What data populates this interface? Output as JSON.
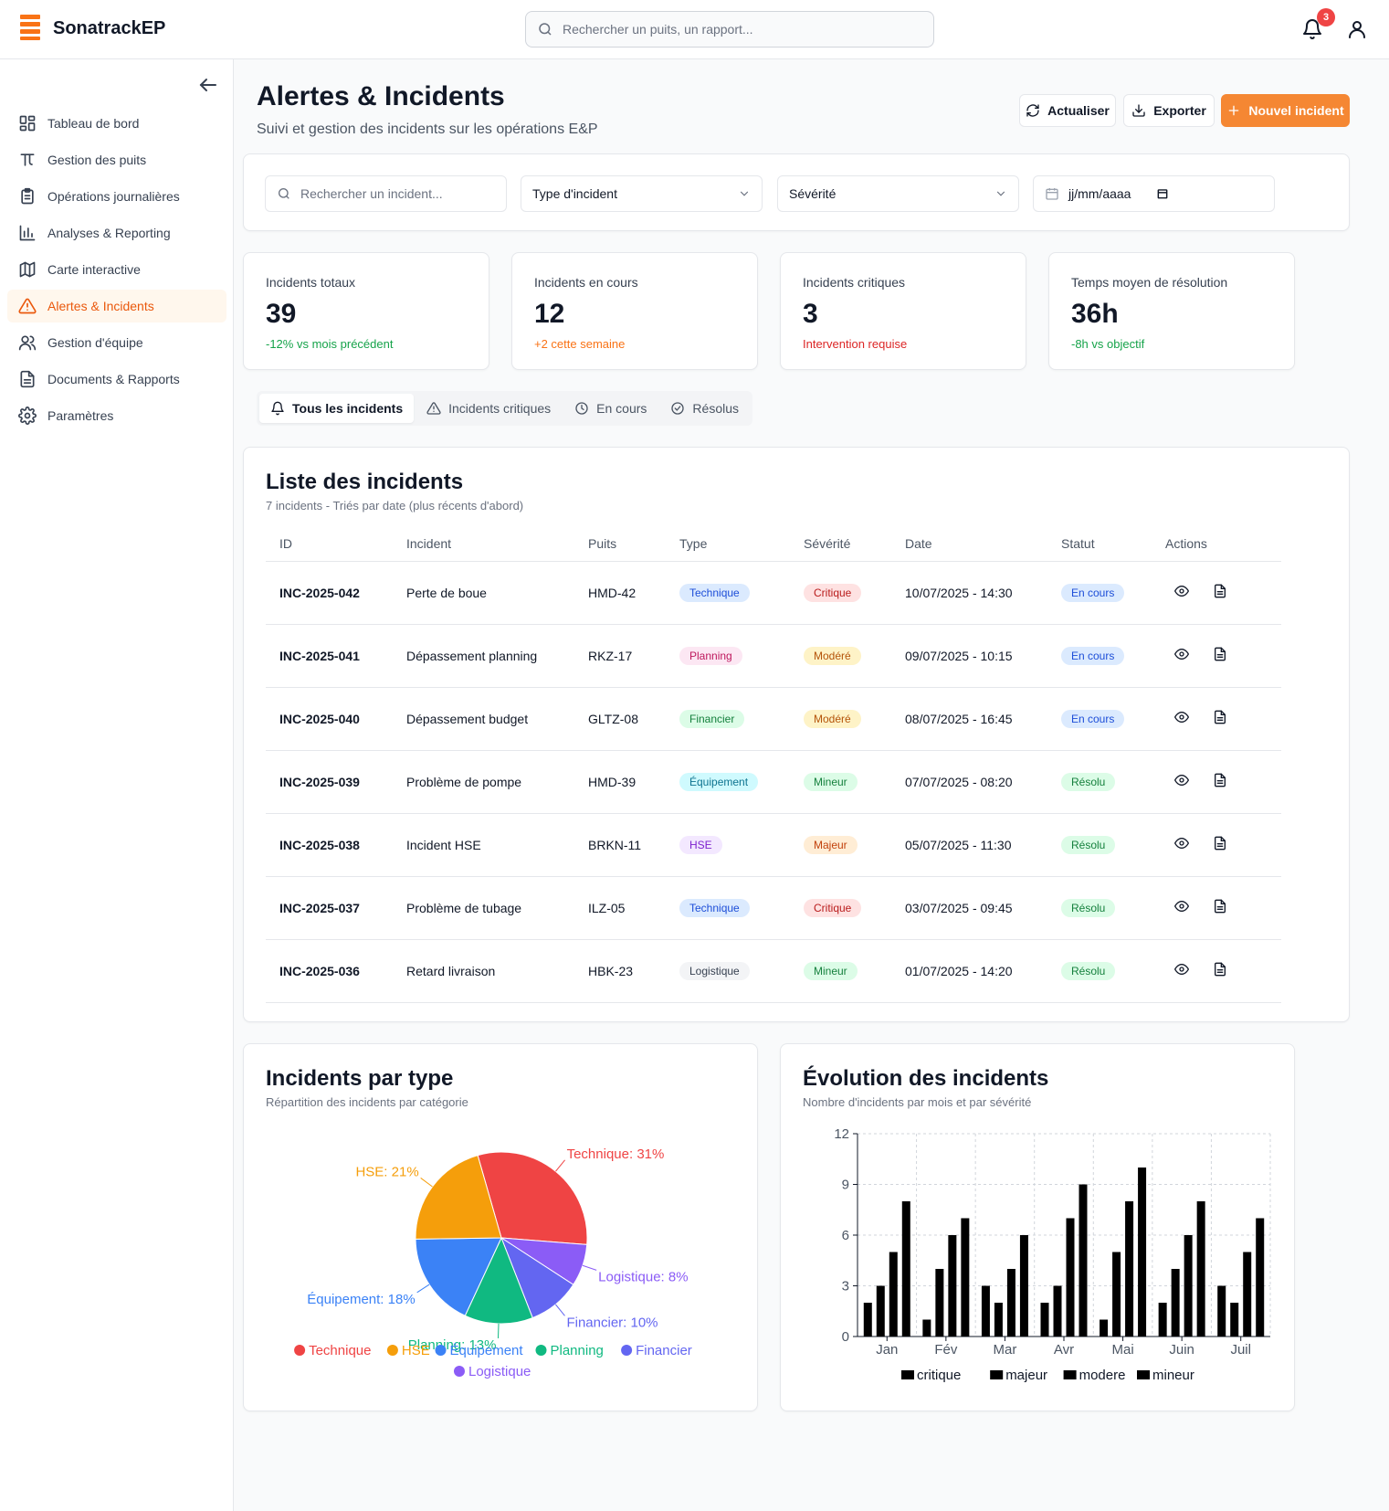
{
  "app": {
    "name": "SonatrackEP"
  },
  "header": {
    "search_placeholder": "Rechercher un puits, un rapport...",
    "notification_count": "3"
  },
  "sidebar": {
    "items": [
      {
        "label": "Tableau de bord",
        "icon": "dashboard-icon",
        "active": false
      },
      {
        "label": "Gestion des puits",
        "icon": "well-icon",
        "active": false
      },
      {
        "label": "Opérations journalières",
        "icon": "clipboard-icon",
        "active": false
      },
      {
        "label": "Analyses & Reporting",
        "icon": "bar-chart-icon",
        "active": false
      },
      {
        "label": "Carte interactive",
        "icon": "map-icon",
        "active": false
      },
      {
        "label": "Alertes & Incidents",
        "icon": "warning-icon",
        "active": true
      },
      {
        "label": "Gestion d'équipe",
        "icon": "users-icon",
        "active": false
      },
      {
        "label": "Documents & Rapports",
        "icon": "document-icon",
        "active": false
      },
      {
        "label": "Paramètres",
        "icon": "gear-icon",
        "active": false
      }
    ]
  },
  "page": {
    "title": "Alertes & Incidents",
    "subtitle": "Suivi et gestion des incidents sur les opérations E&P",
    "actions": {
      "refresh": "Actualiser",
      "export": "Exporter",
      "new": "Nouvel incident"
    }
  },
  "filters": {
    "search_placeholder": "Rechercher un incident...",
    "type": "Type d'incident",
    "severity": "Sévérité",
    "date_placeholder": "jj/mm/aaaa"
  },
  "kpis": [
    {
      "label": "Incidents totaux",
      "value": "39",
      "note": "-12% vs mois précédent",
      "color": "#16a34a"
    },
    {
      "label": "Incidents en cours",
      "value": "12",
      "note": "+2 cette semaine",
      "color": "#f97316"
    },
    {
      "label": "Incidents critiques",
      "value": "3",
      "note": "Intervention requise",
      "color": "#dc2626"
    },
    {
      "label": "Temps moyen de résolution",
      "value": "36h",
      "note": "-8h vs objectif",
      "color": "#16a34a"
    }
  ],
  "tabs": [
    {
      "label": "Tous les incidents",
      "icon": "bell-icon",
      "active": true
    },
    {
      "label": "Incidents critiques",
      "icon": "warning-icon",
      "active": false
    },
    {
      "label": "En cours",
      "icon": "clock-icon",
      "active": false
    },
    {
      "label": "Résolus",
      "icon": "check-circle-icon",
      "active": false
    }
  ],
  "incidents": {
    "title": "Liste des incidents",
    "subtitle": "7 incidents - Triés par date (plus récents d'abord)",
    "columns": [
      "ID",
      "Incident",
      "Puits",
      "Type",
      "Sévérité",
      "Date",
      "Statut",
      "Actions"
    ],
    "rows": [
      {
        "id": "INC-2025-042",
        "incident": "Perte de boue",
        "puits": "HMD-42",
        "type": "Technique",
        "severity": "Critique",
        "date": "10/07/2025 - 14:30",
        "status": "En cours"
      },
      {
        "id": "INC-2025-041",
        "incident": "Dépassement planning",
        "puits": "RKZ-17",
        "type": "Planning",
        "severity": "Modéré",
        "date": "09/07/2025 - 10:15",
        "status": "En cours"
      },
      {
        "id": "INC-2025-040",
        "incident": "Dépassement budget",
        "puits": "GLTZ-08",
        "type": "Financier",
        "severity": "Modéré",
        "date": "08/07/2025 - 16:45",
        "status": "En cours"
      },
      {
        "id": "INC-2025-039",
        "incident": "Problème de pompe",
        "puits": "HMD-39",
        "type": "Équipement",
        "severity": "Mineur",
        "date": "07/07/2025 - 08:20",
        "status": "Résolu"
      },
      {
        "id": "INC-2025-038",
        "incident": "Incident HSE",
        "puits": "BRKN-11",
        "type": "HSE",
        "severity": "Majeur",
        "date": "05/07/2025 - 11:30",
        "status": "Résolu"
      },
      {
        "id": "INC-2025-037",
        "incident": "Problème de tubage",
        "puits": "ILZ-05",
        "type": "Technique",
        "severity": "Critique",
        "date": "03/07/2025 - 09:45",
        "status": "Résolu"
      },
      {
        "id": "INC-2025-036",
        "incident": "Retard livraison",
        "puits": "HBK-23",
        "type": "Logistique",
        "severity": "Mineur",
        "date": "01/07/2025 - 14:20",
        "status": "Résolu"
      }
    ],
    "type_colors": {
      "Technique": {
        "bg": "#dbeafe",
        "fg": "#1d4ed8"
      },
      "Planning": {
        "bg": "#fce7f3",
        "fg": "#be185d"
      },
      "Financier": {
        "bg": "#dcfce7",
        "fg": "#15803d"
      },
      "Équipement": {
        "bg": "#cffafe",
        "fg": "#0e7490"
      },
      "HSE": {
        "bg": "#f3e8ff",
        "fg": "#7e22ce"
      },
      "Logistique": {
        "bg": "#f3f4f6",
        "fg": "#374151"
      }
    },
    "severity_colors": {
      "Critique": {
        "bg": "#fee2e2",
        "fg": "#b91c1c"
      },
      "Modéré": {
        "bg": "#fef3c7",
        "fg": "#b45309"
      },
      "Mineur": {
        "bg": "#dcfce7",
        "fg": "#15803d"
      },
      "Majeur": {
        "bg": "#ffedd5",
        "fg": "#c2410c"
      }
    },
    "status_colors": {
      "En cours": {
        "bg": "#dbeafe",
        "fg": "#1d4ed8"
      },
      "Résolu": {
        "bg": "#dcfce7",
        "fg": "#15803d"
      }
    }
  },
  "pie_card": {
    "title": "Incidents par type",
    "subtitle": "Répartition des incidents par catégorie"
  },
  "bar_card": {
    "title": "Évolution des incidents",
    "subtitle": "Nombre d'incidents par mois et par sévérité"
  },
  "chart_data": [
    {
      "type": "pie",
      "slices": [
        {
          "name": "Technique",
          "value": 31,
          "label": "Technique: 31%",
          "color": "#ef4444"
        },
        {
          "name": "Logistique",
          "value": 8,
          "label": "Logistique: 8%",
          "color": "#8b5cf6"
        },
        {
          "name": "Financier",
          "value": 10,
          "label": "Financier: 10%",
          "color": "#6366f1"
        },
        {
          "name": "Planning",
          "value": 13,
          "label": "Planning: 13%",
          "color": "#10b981"
        },
        {
          "name": "Équipement",
          "value": 18,
          "label": "Équipement: 18%",
          "color": "#3b82f6"
        },
        {
          "name": "HSE",
          "value": 21,
          "label": "HSE: 21%",
          "color": "#f59e0b"
        }
      ],
      "legend": [
        {
          "name": "Technique",
          "color": "#ef4444"
        },
        {
          "name": "HSE",
          "color": "#f59e0b"
        },
        {
          "name": "Équipement",
          "color": "#3b82f6"
        },
        {
          "name": "Planning",
          "color": "#10b981"
        },
        {
          "name": "Financier",
          "color": "#6366f1"
        },
        {
          "name": "Logistique",
          "color": "#8b5cf6"
        }
      ]
    },
    {
      "type": "bar",
      "categories": [
        "Jan",
        "Fév",
        "Mar",
        "Avr",
        "Mai",
        "Juin",
        "Juil"
      ],
      "series": [
        {
          "name": "critique",
          "values": [
            2,
            1,
            3,
            2,
            1,
            2,
            3
          ]
        },
        {
          "name": "majeur",
          "values": [
            3,
            4,
            2,
            3,
            5,
            4,
            2
          ]
        },
        {
          "name": "modere",
          "values": [
            5,
            6,
            4,
            7,
            8,
            6,
            5
          ]
        },
        {
          "name": "mineur",
          "values": [
            8,
            7,
            6,
            9,
            10,
            8,
            7
          ]
        }
      ],
      "yticks": [
        0,
        3,
        6,
        9,
        12
      ],
      "ylim": [
        0,
        12
      ],
      "grid": true,
      "legend_position": "bottom",
      "bar_color": "#000000"
    }
  ]
}
